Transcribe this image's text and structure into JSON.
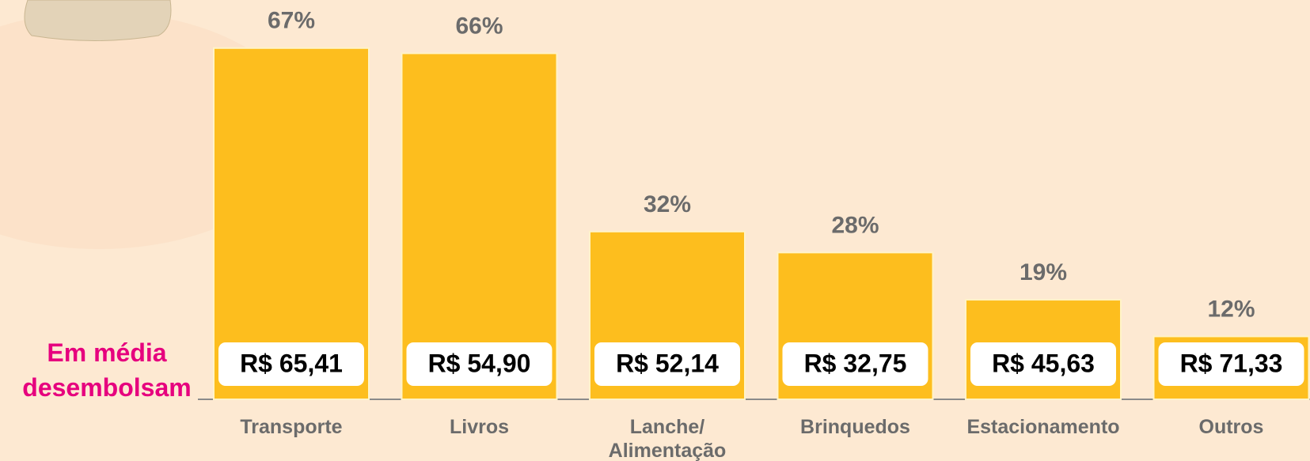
{
  "chart_data": {
    "type": "bar",
    "categories": [
      "Transporte",
      "Livros",
      "Lanche/ Alimentação",
      "Brinquedos",
      "Estacionamento",
      "Outros"
    ],
    "values": [
      67,
      66,
      32,
      28,
      19,
      12
    ],
    "value_labels": [
      "67%",
      "66%",
      "32%",
      "28%",
      "19%",
      "12%"
    ],
    "amounts": [
      "R$ 65,41",
      "R$ 54,90",
      "R$ 52,14",
      "R$ 32,75",
      "R$ 45,63",
      "R$ 71,33"
    ],
    "side_label": "Em média desembolsam",
    "color": "#fdbe1e"
  }
}
